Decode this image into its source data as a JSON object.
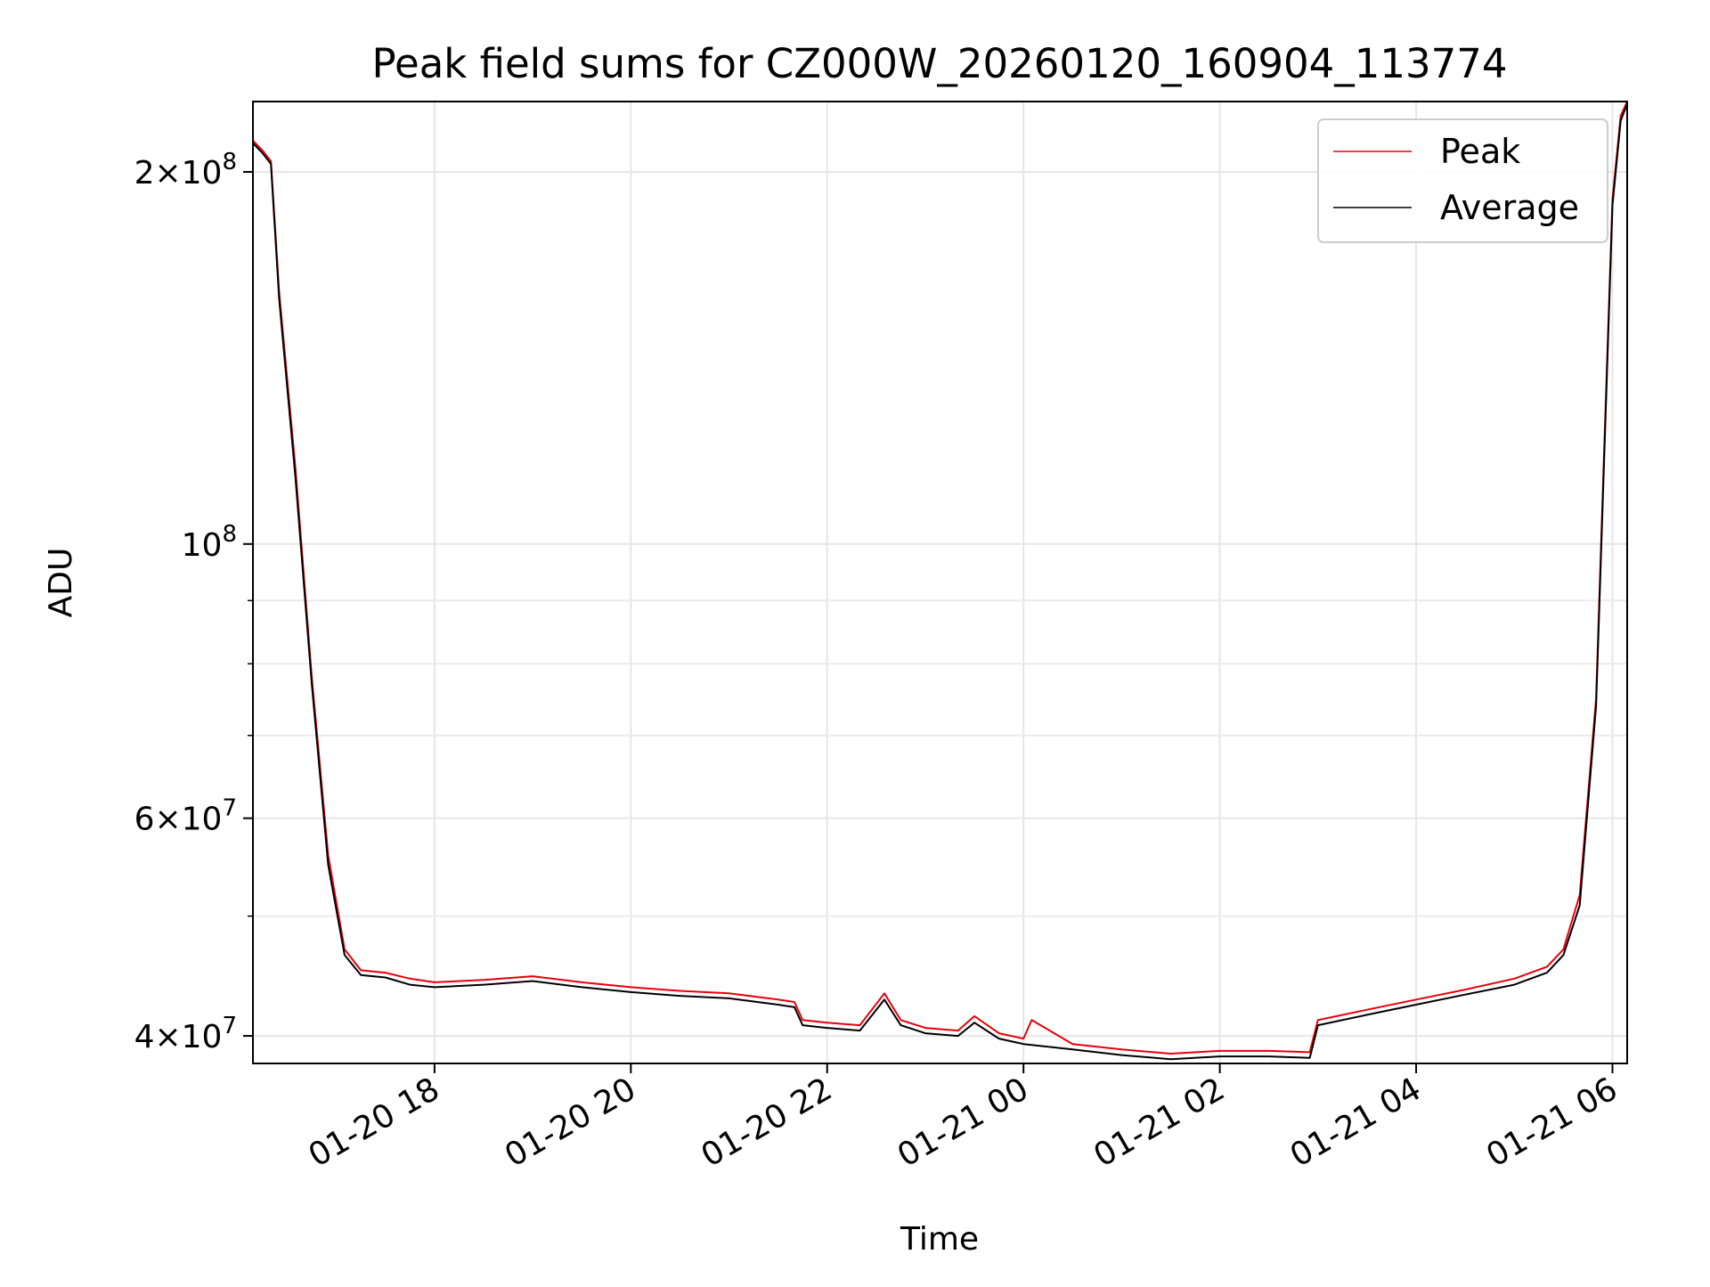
{
  "chart_data": {
    "type": "line",
    "title": "Peak field sums for CZ000W_20260120_160904_113774",
    "xlabel": "Time",
    "ylabel": "ADU",
    "yscale": "log",
    "grid": true,
    "legend_position": "upper right",
    "xlim": [
      "2026-01-20 16:09",
      "2026-01-21 06:09"
    ],
    "ylim": [
      38000000,
      228000000
    ],
    "x_ticks": [
      {
        "value": "2026-01-20 18:00",
        "label": "01-20 18"
      },
      {
        "value": "2026-01-20 20:00",
        "label": "01-20 20"
      },
      {
        "value": "2026-01-20 22:00",
        "label": "01-20 22"
      },
      {
        "value": "2026-01-21 00:00",
        "label": "01-21 00"
      },
      {
        "value": "2026-01-21 02:00",
        "label": "01-21 02"
      },
      {
        "value": "2026-01-21 04:00",
        "label": "01-21 04"
      },
      {
        "value": "2026-01-21 06:00",
        "label": "01-21 06"
      }
    ],
    "y_ticks": [
      {
        "value": 40000000,
        "mantissa": "4",
        "exp": "7"
      },
      {
        "value": 60000000,
        "mantissa": "6",
        "exp": "7"
      },
      {
        "value": 100000000,
        "mantissa": "",
        "exp": "8"
      },
      {
        "value": 200000000,
        "mantissa": "2",
        "exp": "8"
      }
    ],
    "y_minor_ticks": [
      50000000,
      70000000,
      80000000,
      90000000
    ],
    "series": [
      {
        "name": "Peak",
        "color": "#e8000b",
        "x": [
          "2026-01-20 16:09",
          "2026-01-20 16:15",
          "2026-01-20 16:20",
          "2026-01-20 16:25",
          "2026-01-20 16:35",
          "2026-01-20 16:45",
          "2026-01-20 16:55",
          "2026-01-20 17:05",
          "2026-01-20 17:15",
          "2026-01-20 17:30",
          "2026-01-20 17:45",
          "2026-01-20 18:00",
          "2026-01-20 18:30",
          "2026-01-20 19:00",
          "2026-01-20 19:30",
          "2026-01-20 20:00",
          "2026-01-20 20:30",
          "2026-01-20 21:00",
          "2026-01-20 21:30",
          "2026-01-20 21:40",
          "2026-01-20 21:45",
          "2026-01-20 22:00",
          "2026-01-20 22:20",
          "2026-01-20 22:35",
          "2026-01-20 22:45",
          "2026-01-20 23:00",
          "2026-01-20 23:20",
          "2026-01-20 23:30",
          "2026-01-20 23:45",
          "2026-01-21 00:00",
          "2026-01-21 00:05",
          "2026-01-21 00:30",
          "2026-01-21 01:00",
          "2026-01-21 01:30",
          "2026-01-21 02:00",
          "2026-01-21 02:30",
          "2026-01-21 02:55",
          "2026-01-21 03:00",
          "2026-01-21 03:30",
          "2026-01-21 04:00",
          "2026-01-21 04:30",
          "2026-01-21 05:00",
          "2026-01-21 05:20",
          "2026-01-21 05:30",
          "2026-01-21 05:40",
          "2026-01-21 05:50",
          "2026-01-21 05:55",
          "2026-01-21 06:00",
          "2026-01-21 06:05",
          "2026-01-21 06:09"
        ],
        "y": [
          212000000,
          208000000,
          204000000,
          160000000,
          115000000,
          78000000,
          56000000,
          47000000,
          45200000,
          45000000,
          44500000,
          44200000,
          44400000,
          44700000,
          44200000,
          43800000,
          43500000,
          43300000,
          42800000,
          42600000,
          41200000,
          41000000,
          40800000,
          43300000,
          41200000,
          40600000,
          40400000,
          41500000,
          40200000,
          39800000,
          41200000,
          39400000,
          39000000,
          38700000,
          38900000,
          38900000,
          38800000,
          41200000,
          42000000,
          42800000,
          43600000,
          44500000,
          45500000,
          47000000,
          52000000,
          75000000,
          120000000,
          190000000,
          222000000,
          228000000
        ]
      },
      {
        "name": "Average",
        "color": "#000000",
        "x": [
          "2026-01-20 16:09",
          "2026-01-20 16:15",
          "2026-01-20 16:20",
          "2026-01-20 16:25",
          "2026-01-20 16:35",
          "2026-01-20 16:45",
          "2026-01-20 16:55",
          "2026-01-20 17:05",
          "2026-01-20 17:15",
          "2026-01-20 17:30",
          "2026-01-20 17:45",
          "2026-01-20 18:00",
          "2026-01-20 18:30",
          "2026-01-20 19:00",
          "2026-01-20 19:30",
          "2026-01-20 20:00",
          "2026-01-20 20:30",
          "2026-01-20 21:00",
          "2026-01-20 21:30",
          "2026-01-20 21:40",
          "2026-01-20 21:45",
          "2026-01-20 22:00",
          "2026-01-20 22:20",
          "2026-01-20 22:35",
          "2026-01-20 22:45",
          "2026-01-20 23:00",
          "2026-01-20 23:20",
          "2026-01-20 23:30",
          "2026-01-20 23:45",
          "2026-01-21 00:00",
          "2026-01-21 00:30",
          "2026-01-21 01:00",
          "2026-01-21 01:30",
          "2026-01-21 02:00",
          "2026-01-21 02:30",
          "2026-01-21 02:55",
          "2026-01-21 03:00",
          "2026-01-21 03:30",
          "2026-01-21 04:00",
          "2026-01-21 04:30",
          "2026-01-21 05:00",
          "2026-01-21 05:20",
          "2026-01-21 05:30",
          "2026-01-21 05:40",
          "2026-01-21 05:50",
          "2026-01-21 05:55",
          "2026-01-21 06:00",
          "2026-01-21 06:05",
          "2026-01-21 06:09"
        ],
        "y": [
          211000000,
          207000000,
          203000000,
          158000000,
          113000000,
          77000000,
          55000000,
          46500000,
          44800000,
          44600000,
          44000000,
          43800000,
          44000000,
          44300000,
          43800000,
          43400000,
          43100000,
          42900000,
          42400000,
          42200000,
          40800000,
          40600000,
          40400000,
          42800000,
          40800000,
          40200000,
          40000000,
          41000000,
          39800000,
          39400000,
          39000000,
          38600000,
          38300000,
          38500000,
          38500000,
          38400000,
          40800000,
          41600000,
          42400000,
          43200000,
          44000000,
          45000000,
          46500000,
          51000000,
          74000000,
          118000000,
          188000000,
          220000000,
          227000000
        ]
      }
    ]
  }
}
